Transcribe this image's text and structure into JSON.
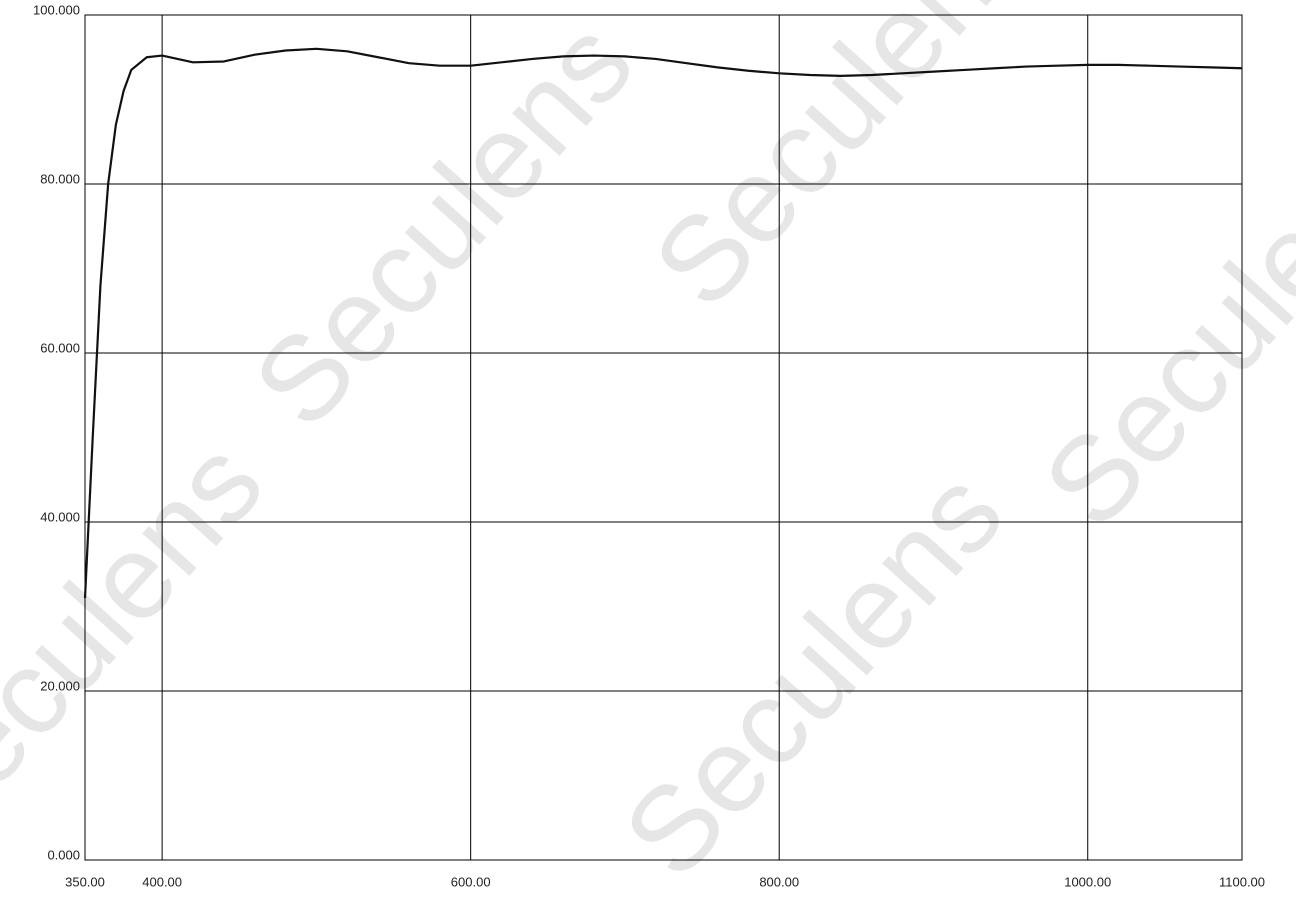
{
  "chart_data": {
    "type": "line",
    "watermark": "Seculens",
    "x": [
      350,
      355,
      360,
      365,
      370,
      375,
      380,
      390,
      400,
      410,
      420,
      440,
      460,
      480,
      500,
      520,
      540,
      560,
      580,
      600,
      620,
      640,
      660,
      680,
      700,
      720,
      740,
      760,
      780,
      800,
      820,
      840,
      860,
      880,
      900,
      920,
      940,
      960,
      980,
      1000,
      1020,
      1040,
      1060,
      1080,
      1100
    ],
    "series": [
      {
        "color": "#111111",
        "values": [
          31,
          50,
          68,
          80,
          87,
          91,
          93.5,
          95,
          95.2,
          94.8,
          94.4,
          94.5,
          95.3,
          95.8,
          96.0,
          95.7,
          95.0,
          94.3,
          94.0,
          94.0,
          94.4,
          94.8,
          95.1,
          95.2,
          95.1,
          94.8,
          94.3,
          93.8,
          93.4,
          93.1,
          92.9,
          92.8,
          92.9,
          93.1,
          93.3,
          93.5,
          93.7,
          93.9,
          94.0,
          94.1,
          94.1,
          94.0,
          93.9,
          93.8,
          93.7
        ]
      }
    ],
    "xlim": [
      350,
      1100
    ],
    "xticks": [
      {
        "value": 350,
        "label": "350.00"
      },
      {
        "value": 400,
        "label": "400.00"
      },
      {
        "value": 600,
        "label": "600.00"
      },
      {
        "value": 800,
        "label": "800.00"
      },
      {
        "value": 1000,
        "label": "1000.00"
      },
      {
        "value": 1100,
        "label": "1100.00"
      }
    ],
    "ylim": [
      0,
      100
    ],
    "yticks": [
      {
        "value": 0,
        "label": "0.000"
      },
      {
        "value": 20,
        "label": "20.000"
      },
      {
        "value": 40,
        "label": "40.000"
      },
      {
        "value": 60,
        "label": "60.000"
      },
      {
        "value": 80,
        "label": "80.000"
      },
      {
        "value": 100,
        "label": "100.000"
      }
    ],
    "grid": true
  }
}
